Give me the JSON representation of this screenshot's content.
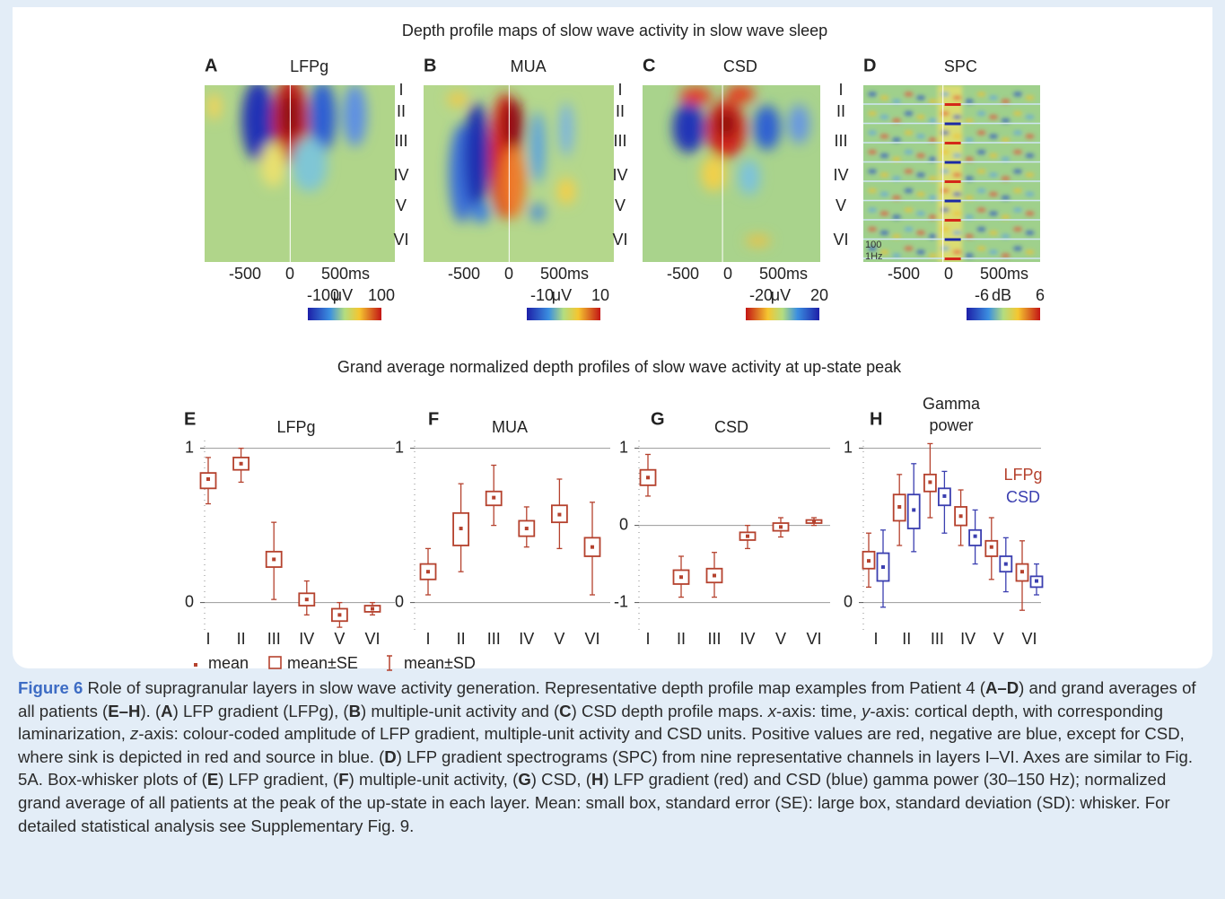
{
  "header": {
    "title": "Depth profile maps of slow wave activity in slow wave sleep"
  },
  "maps": [
    {
      "letter": "A",
      "title": "LFPg",
      "xticks": [
        "-500",
        "0",
        "500ms"
      ],
      "colorbar": [
        "-100",
        "μV",
        "100"
      ]
    },
    {
      "letter": "B",
      "title": "MUA",
      "layers": [
        "I",
        "II",
        "III",
        "IV",
        "V",
        "VI"
      ],
      "xticks": [
        "-500",
        "0",
        "500ms"
      ],
      "colorbar": [
        "-10",
        "μV",
        "10"
      ]
    },
    {
      "letter": "C",
      "title": "CSD",
      "layers": [
        "I",
        "II",
        "III",
        "IV",
        "V",
        "VI"
      ],
      "xticks": [
        "-500",
        "0",
        "500ms"
      ],
      "colorbar": [
        "-20",
        "μV",
        "20"
      ]
    },
    {
      "letter": "D",
      "title": "SPC",
      "layers": [
        "I",
        "II",
        "III",
        "IV",
        "V",
        "VI"
      ],
      "xticks": [
        "-500",
        "0",
        "500ms"
      ],
      "colorbar": [
        "-6",
        "dB",
        "6"
      ],
      "scale_note": [
        "100",
        "1Hz"
      ]
    }
  ],
  "section_title": "Grand average normalized depth profiles of slow wave activity at up-state peak",
  "chart_data": [
    {
      "type": "box",
      "letter": "E",
      "title": "LFPg",
      "categories": [
        "I",
        "II",
        "III",
        "IV",
        "V",
        "VI"
      ],
      "ylim": [
        -0.2,
        1.05
      ],
      "yticks": [
        0,
        1
      ],
      "grid": true,
      "series": [
        {
          "color": "#b5422e",
          "mean": [
            0.8,
            0.9,
            0.28,
            0.02,
            -0.08,
            -0.04
          ],
          "se_low": [
            0.74,
            0.86,
            0.23,
            -0.02,
            -0.12,
            -0.06
          ],
          "se_high": [
            0.84,
            0.94,
            0.33,
            0.06,
            -0.04,
            -0.02
          ],
          "sd_low": [
            0.64,
            0.78,
            0.02,
            -0.08,
            -0.16,
            -0.08
          ],
          "sd_high": [
            0.94,
            1.0,
            0.52,
            0.14,
            0.0,
            0.0
          ]
        }
      ]
    },
    {
      "type": "box",
      "letter": "F",
      "title": "MUA",
      "categories": [
        "I",
        "II",
        "III",
        "IV",
        "V",
        "VI"
      ],
      "ylim": [
        -0.2,
        1.05
      ],
      "yticks": [
        0,
        1
      ],
      "grid": true,
      "series": [
        {
          "color": "#b5422e",
          "mean": [
            0.2,
            0.48,
            0.68,
            0.48,
            0.57,
            0.36
          ],
          "se_low": [
            0.15,
            0.37,
            0.63,
            0.43,
            0.52,
            0.3
          ],
          "se_high": [
            0.25,
            0.58,
            0.72,
            0.53,
            0.63,
            0.42
          ],
          "sd_low": [
            0.05,
            0.2,
            0.5,
            0.36,
            0.35,
            0.05
          ],
          "sd_high": [
            0.35,
            0.77,
            0.89,
            0.62,
            0.8,
            0.65
          ]
        }
      ]
    },
    {
      "type": "box",
      "letter": "G",
      "title": "CSD",
      "categories": [
        "I",
        "II",
        "III",
        "IV",
        "V",
        "VI"
      ],
      "ylim": [
        -1.4,
        1.1
      ],
      "yticks": [
        -1,
        0,
        1
      ],
      "grid": true,
      "series": [
        {
          "color": "#b5422e",
          "mean": [
            0.62,
            -0.67,
            -0.65,
            -0.14,
            -0.02,
            0.05
          ],
          "se_low": [
            0.52,
            -0.76,
            -0.74,
            -0.19,
            -0.07,
            0.03
          ],
          "se_high": [
            0.72,
            -0.58,
            -0.56,
            -0.09,
            0.03,
            0.07
          ],
          "sd_low": [
            0.38,
            -0.93,
            -0.93,
            -0.3,
            -0.15,
            0.0
          ],
          "sd_high": [
            0.92,
            -0.4,
            -0.35,
            0.0,
            0.1,
            0.1
          ]
        }
      ]
    },
    {
      "type": "box",
      "letter": "H",
      "title": "Gamma power",
      "categories": [
        "I",
        "II",
        "III",
        "IV",
        "V",
        "VI"
      ],
      "ylim": [
        -0.2,
        1.05
      ],
      "yticks": [
        0,
        1
      ],
      "grid": true,
      "series": [
        {
          "name": "LFPg",
          "color": "#b5422e",
          "mean": [
            0.27,
            0.62,
            0.78,
            0.56,
            0.36,
            0.2
          ],
          "se_low": [
            0.22,
            0.53,
            0.72,
            0.5,
            0.3,
            0.14
          ],
          "se_high": [
            0.33,
            0.7,
            0.83,
            0.62,
            0.4,
            0.25
          ],
          "sd_low": [
            0.1,
            0.37,
            0.55,
            0.37,
            0.15,
            -0.05
          ],
          "sd_high": [
            0.45,
            0.83,
            1.03,
            0.73,
            0.55,
            0.4
          ]
        },
        {
          "name": "CSD",
          "color": "#3b3fb0",
          "mean": [
            0.23,
            0.6,
            0.69,
            0.43,
            0.25,
            0.14
          ],
          "se_low": [
            0.14,
            0.48,
            0.63,
            0.37,
            0.2,
            0.1
          ],
          "se_high": [
            0.32,
            0.7,
            0.74,
            0.47,
            0.3,
            0.17
          ],
          "sd_low": [
            -0.03,
            0.33,
            0.45,
            0.25,
            0.07,
            0.05
          ],
          "sd_high": [
            0.47,
            0.9,
            0.85,
            0.6,
            0.42,
            0.25
          ]
        }
      ]
    }
  ],
  "legend": [
    "mean",
    "mean±SE",
    "mean±SD"
  ],
  "caption": [
    {
      "text": "Figure 6",
      "style": "figure"
    },
    {
      "text": "  Role of supragranular layers in slow wave activity generation. Representative depth profile map examples from Patient 4 ("
    },
    {
      "text": "A–D",
      "style": "bold"
    },
    {
      "text": ") and grand averages of all patients ("
    },
    {
      "text": "E–H",
      "style": "bold"
    },
    {
      "text": "). ("
    },
    {
      "text": "A",
      "style": "bold"
    },
    {
      "text": ") LFP gradient (LFPg), ("
    },
    {
      "text": "B",
      "style": "bold"
    },
    {
      "text": ") multiple-unit activity and ("
    },
    {
      "text": "C",
      "style": "bold"
    },
    {
      "text": ") CSD depth profile maps. "
    },
    {
      "text": "x",
      "style": "italic"
    },
    {
      "text": "-axis: time, "
    },
    {
      "text": "y",
      "style": "italic"
    },
    {
      "text": "-axis: cortical depth, with corresponding laminarization, "
    },
    {
      "text": "z",
      "style": "italic"
    },
    {
      "text": "-axis: colour-coded amplitude of LFP gradient, multiple-unit activity and CSD units. Positive values are red, negative are blue, except for CSD, where sink is depicted in red and source in blue. ("
    },
    {
      "text": "D",
      "style": "bold"
    },
    {
      "text": ") LFP gradient spectrograms (SPC) from nine representative channels in layers I–VI. Axes are similar to Fig. 5A. Box-whisker plots of ("
    },
    {
      "text": "E",
      "style": "bold"
    },
    {
      "text": ") LFP gradient, ("
    },
    {
      "text": "F",
      "style": "bold"
    },
    {
      "text": ") multiple-unit activity, ("
    },
    {
      "text": "G",
      "style": "bold"
    },
    {
      "text": ") CSD, ("
    },
    {
      "text": "H",
      "style": "bold"
    },
    {
      "text": ") LFP gradient (red) and CSD (blue) gamma power (30–150 Hz); normalized grand average of all patients at the peak of the up-state in each layer. Mean: small box, standard error (SE): large box, standard deviation (SD): whisker. For detailed statistical analysis see Supplementary Fig. 9."
    }
  ]
}
